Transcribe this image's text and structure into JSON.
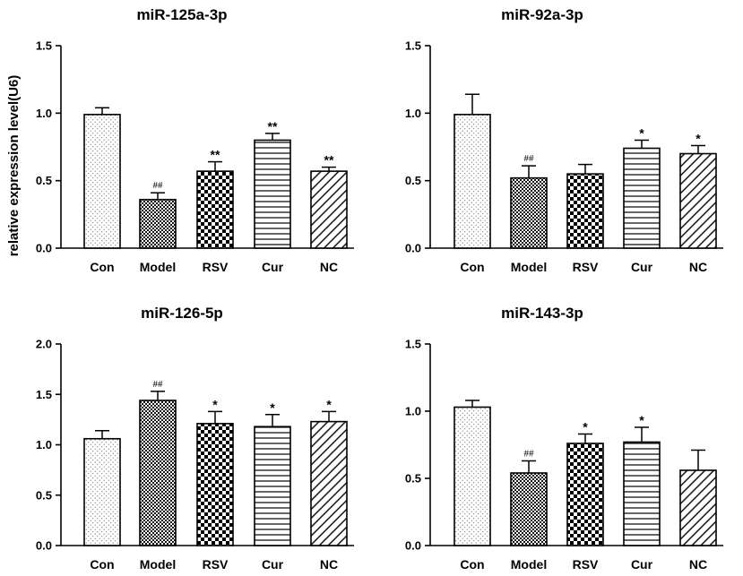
{
  "chart_data": [
    {
      "type": "bar",
      "title": "miR-125a-3p",
      "ylabel": "relative expression level(U6)",
      "xlabel": "",
      "categories": [
        "Con",
        "Model",
        "RSV",
        "Cur",
        "NC"
      ],
      "values": [
        0.99,
        0.36,
        0.57,
        0.8,
        0.57
      ],
      "errors": [
        0.05,
        0.05,
        0.07,
        0.05,
        0.03
      ],
      "annotations": [
        "",
        "##",
        "**",
        "**",
        "**"
      ],
      "ylim": [
        0,
        1.5
      ],
      "yticks": [
        "0.0",
        "0.5",
        "1.0",
        "1.5"
      ]
    },
    {
      "type": "bar",
      "title": "miR-92a-3p",
      "ylabel": "",
      "xlabel": "",
      "categories": [
        "Con",
        "Model",
        "RSV",
        "Cur",
        "NC"
      ],
      "values": [
        0.99,
        0.52,
        0.55,
        0.74,
        0.7
      ],
      "errors": [
        0.15,
        0.09,
        0.07,
        0.06,
        0.06
      ],
      "annotations": [
        "",
        "##",
        "",
        "*",
        "*"
      ],
      "ylim": [
        0,
        1.5
      ],
      "yticks": [
        "0.0",
        "0.5",
        "1.0",
        "1.5"
      ]
    },
    {
      "type": "bar",
      "title": "miR-126-5p",
      "ylabel": "",
      "xlabel": "",
      "categories": [
        "Con",
        "Model",
        "RSV",
        "Cur",
        "NC"
      ],
      "values": [
        1.06,
        1.44,
        1.21,
        1.18,
        1.23
      ],
      "errors": [
        0.08,
        0.09,
        0.12,
        0.12,
        0.1
      ],
      "annotations": [
        "",
        "##",
        "*",
        "*",
        "*"
      ],
      "ylim": [
        0,
        2.0
      ],
      "yticks": [
        "0.0",
        "0.5",
        "1.0",
        "1.5",
        "2.0"
      ]
    },
    {
      "type": "bar",
      "title": "miR-143-3p",
      "ylabel": "",
      "xlabel": "",
      "categories": [
        "Con",
        "Model",
        "RSV",
        "Cur",
        "NC"
      ],
      "values": [
        1.03,
        0.54,
        0.76,
        0.77,
        0.56
      ],
      "errors": [
        0.05,
        0.09,
        0.07,
        0.11,
        0.15
      ],
      "annotations": [
        "",
        "##",
        "*",
        "*",
        ""
      ],
      "ylim": [
        0,
        1.5
      ],
      "yticks": [
        "0.0",
        "0.5",
        "1.0",
        "1.5"
      ]
    }
  ],
  "colors": {
    "bar_stroke": "#000000",
    "pattern": "#000000",
    "background": "#ffffff"
  }
}
